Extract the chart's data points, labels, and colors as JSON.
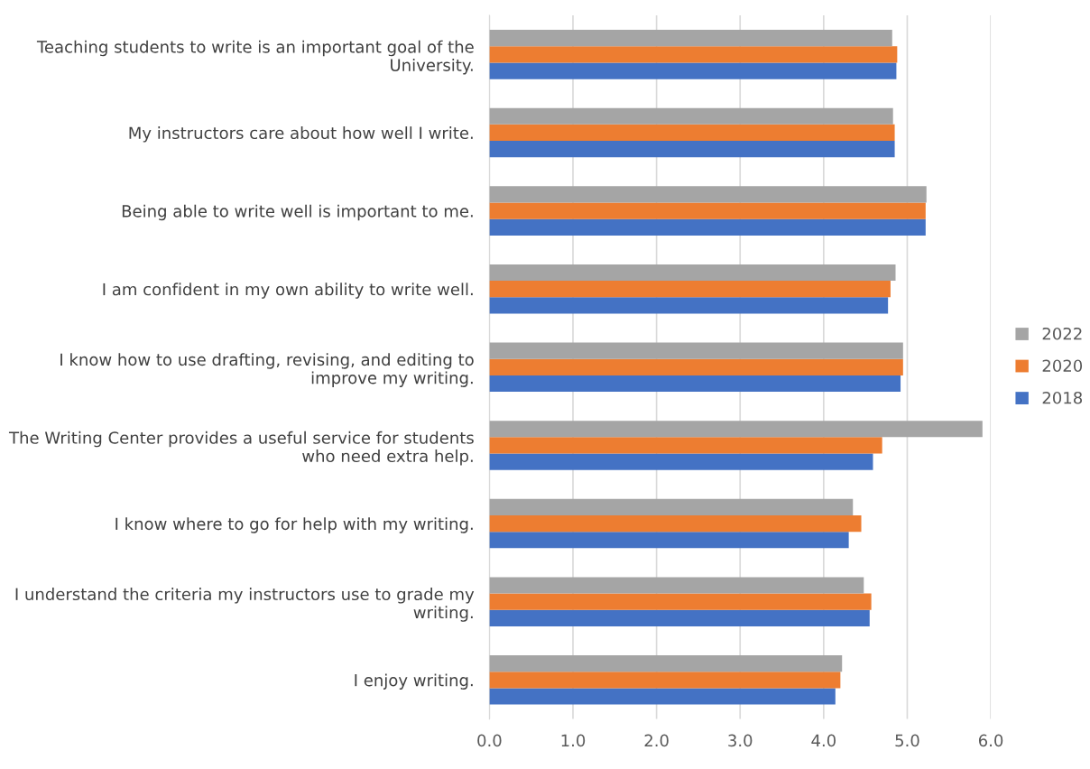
{
  "chart_data": {
    "type": "bar",
    "orientation": "horizontal",
    "categories": [
      "Teaching students to write is an important goal of the University.",
      "My instructors care about how well I write.",
      "Being able to write well is important to me.",
      "I am confident in my own ability to write well.",
      "I know how to use drafting, revising, and editing to improve my writing.",
      "The Writing Center provides a useful service for students who need extra help.",
      "I know where to go for help with my writing.",
      "I understand the criteria my instructors use to grade my writing.",
      "I enjoy writing."
    ],
    "series": [
      {
        "name": "2018",
        "color": "#4472c4",
        "values": [
          4.87,
          4.85,
          5.22,
          4.77,
          4.92,
          4.59,
          4.3,
          4.55,
          4.14
        ]
      },
      {
        "name": "2020",
        "color": "#ed7d31",
        "values": [
          4.88,
          4.85,
          5.22,
          4.8,
          4.95,
          4.7,
          4.45,
          4.57,
          4.2
        ]
      },
      {
        "name": "2022",
        "color": "#a5a5a5",
        "values": [
          4.82,
          4.83,
          5.23,
          4.86,
          4.95,
          5.9,
          4.35,
          4.48,
          4.22
        ]
      }
    ],
    "xlim": [
      0,
      6
    ],
    "xticks": [
      {
        "value": 0,
        "label": "0.0"
      },
      {
        "value": 1,
        "label": "1.0"
      },
      {
        "value": 2,
        "label": "2.0"
      },
      {
        "value": 3,
        "label": "3.0"
      },
      {
        "value": 4,
        "label": "4.0"
      },
      {
        "value": 5,
        "label": "5.0"
      },
      {
        "value": 6,
        "label": "6.0"
      }
    ],
    "grid": "x",
    "legend": "right"
  }
}
